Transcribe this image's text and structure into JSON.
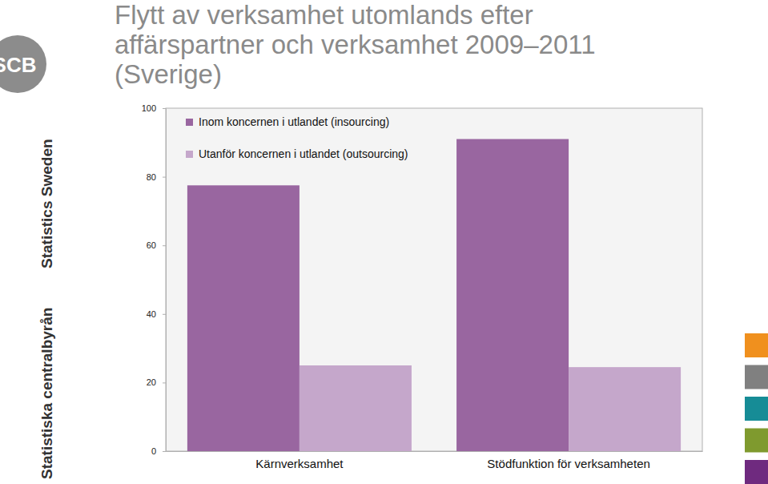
{
  "chart_data": {
    "type": "bar",
    "title": "Flytt av verksamhet utomlands efter affärspartner och verksamhet 2009–2011 (Sverige)",
    "categories": [
      "Kärnverksamhet",
      "Stödfunktion för verksamheten"
    ],
    "series": [
      {
        "name": "Inom koncernen i utlandet (insourcing)",
        "color": "#9966a0",
        "values": [
          77.5,
          91
        ]
      },
      {
        "name": "Utanför koncernen i utlandet (outsourcing)",
        "color": "#c5a7cb",
        "values": [
          25,
          24.5
        ]
      }
    ],
    "ylim": [
      0,
      100
    ],
    "yticks": [
      0,
      20,
      40,
      60,
      80,
      100
    ],
    "legend": "top-left",
    "annotations": [
      "SCB",
      "Statistics Sweden",
      "Statistiska centralbyrån"
    ]
  }
}
